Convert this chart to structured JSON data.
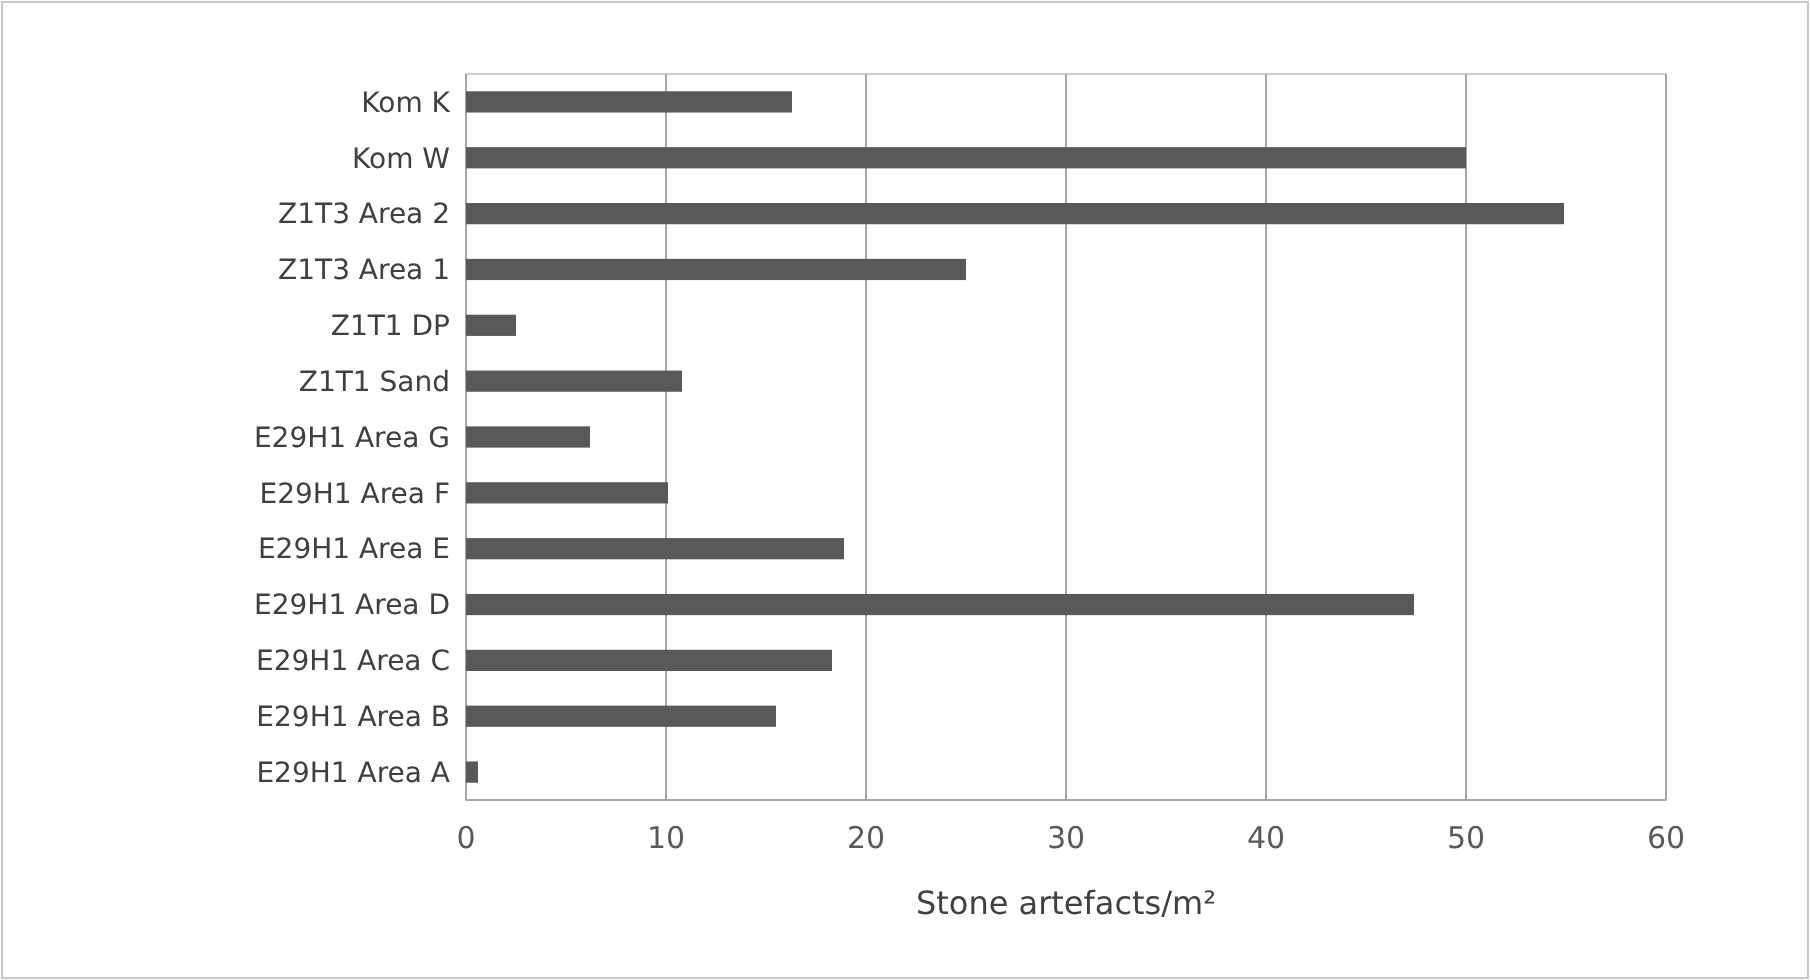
{
  "chart_data": {
    "type": "bar",
    "orientation": "horizontal",
    "categories": [
      "Kom K",
      "Kom W",
      "Z1T3 Area 2",
      "Z1T3 Area 1",
      "Z1T1 DP",
      "Z1T1 Sand",
      "E29H1 Area G",
      "E29H1 Area F",
      "E29H1 Area E",
      "E29H1 Area D",
      "E29H1 Area C",
      "E29H1 Area B",
      "E29H1 Area A"
    ],
    "values": [
      16.3,
      50,
      54.9,
      25,
      2.5,
      10.8,
      6.2,
      10.1,
      18.9,
      47.4,
      18.3,
      15.5,
      0.6
    ],
    "color": "#595959",
    "xlim": [
      0,
      60
    ],
    "xticks": [
      0,
      10,
      20,
      30,
      40,
      50,
      60
    ],
    "grid": "x",
    "xlabel": "Stone artefacts/m²"
  }
}
